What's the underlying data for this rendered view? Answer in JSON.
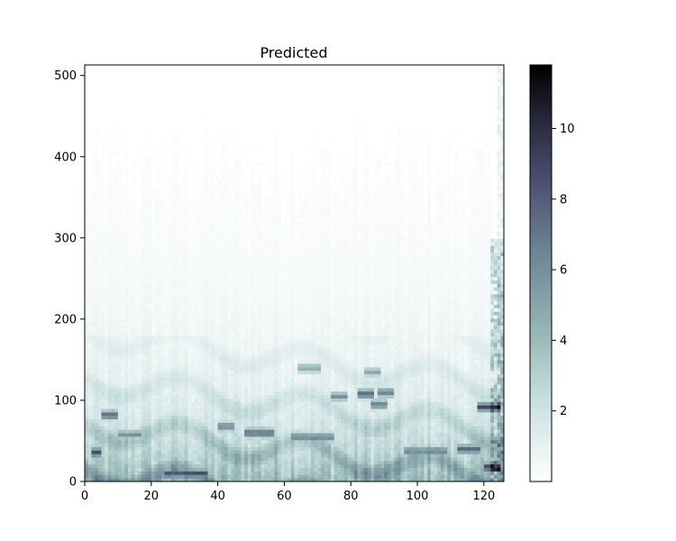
{
  "chart_data": {
    "type": "heatmap",
    "title": "Predicted",
    "xlabel": "",
    "ylabel": "",
    "x_range": [
      0,
      126
    ],
    "y_range": [
      0,
      513
    ],
    "x_ticks": [
      0,
      20,
      40,
      60,
      80,
      100,
      120
    ],
    "y_ticks": [
      0,
      100,
      200,
      300,
      400,
      500
    ],
    "colorbar": {
      "colormap": "bone_r",
      "range": [
        0,
        11.8
      ],
      "ticks": [
        2,
        4,
        6,
        8,
        10
      ]
    },
    "grid": false,
    "features": [
      {
        "x": [
          5,
          9
        ],
        "y": 82,
        "value": 8
      },
      {
        "x": [
          2,
          4
        ],
        "y": 36,
        "value": 9
      },
      {
        "x": [
          10,
          16
        ],
        "y": 58,
        "value": 6
      },
      {
        "x": [
          24,
          36
        ],
        "y": 10,
        "value": 9
      },
      {
        "x": [
          40,
          44
        ],
        "y": 68,
        "value": 7
      },
      {
        "x": [
          48,
          56
        ],
        "y": 60,
        "value": 8
      },
      {
        "x": [
          62,
          74
        ],
        "y": 55,
        "value": 7
      },
      {
        "x": [
          74,
          78
        ],
        "y": 105,
        "value": 6
      },
      {
        "x": [
          82,
          86
        ],
        "y": 108,
        "value": 8
      },
      {
        "x": [
          88,
          92
        ],
        "y": 110,
        "value": 7
      },
      {
        "x": [
          86,
          90
        ],
        "y": 95,
        "value": 7
      },
      {
        "x": [
          96,
          108
        ],
        "y": 38,
        "value": 7
      },
      {
        "x": [
          112,
          118
        ],
        "y": 40,
        "value": 8
      },
      {
        "x": [
          118,
          124
        ],
        "y": 92,
        "value": 9
      },
      {
        "x": [
          120,
          124
        ],
        "y": 18,
        "value": 10
      },
      {
        "x": [
          64,
          70
        ],
        "y": 140,
        "value": 5
      },
      {
        "x": [
          84,
          88
        ],
        "y": 135,
        "value": 5
      }
    ]
  }
}
